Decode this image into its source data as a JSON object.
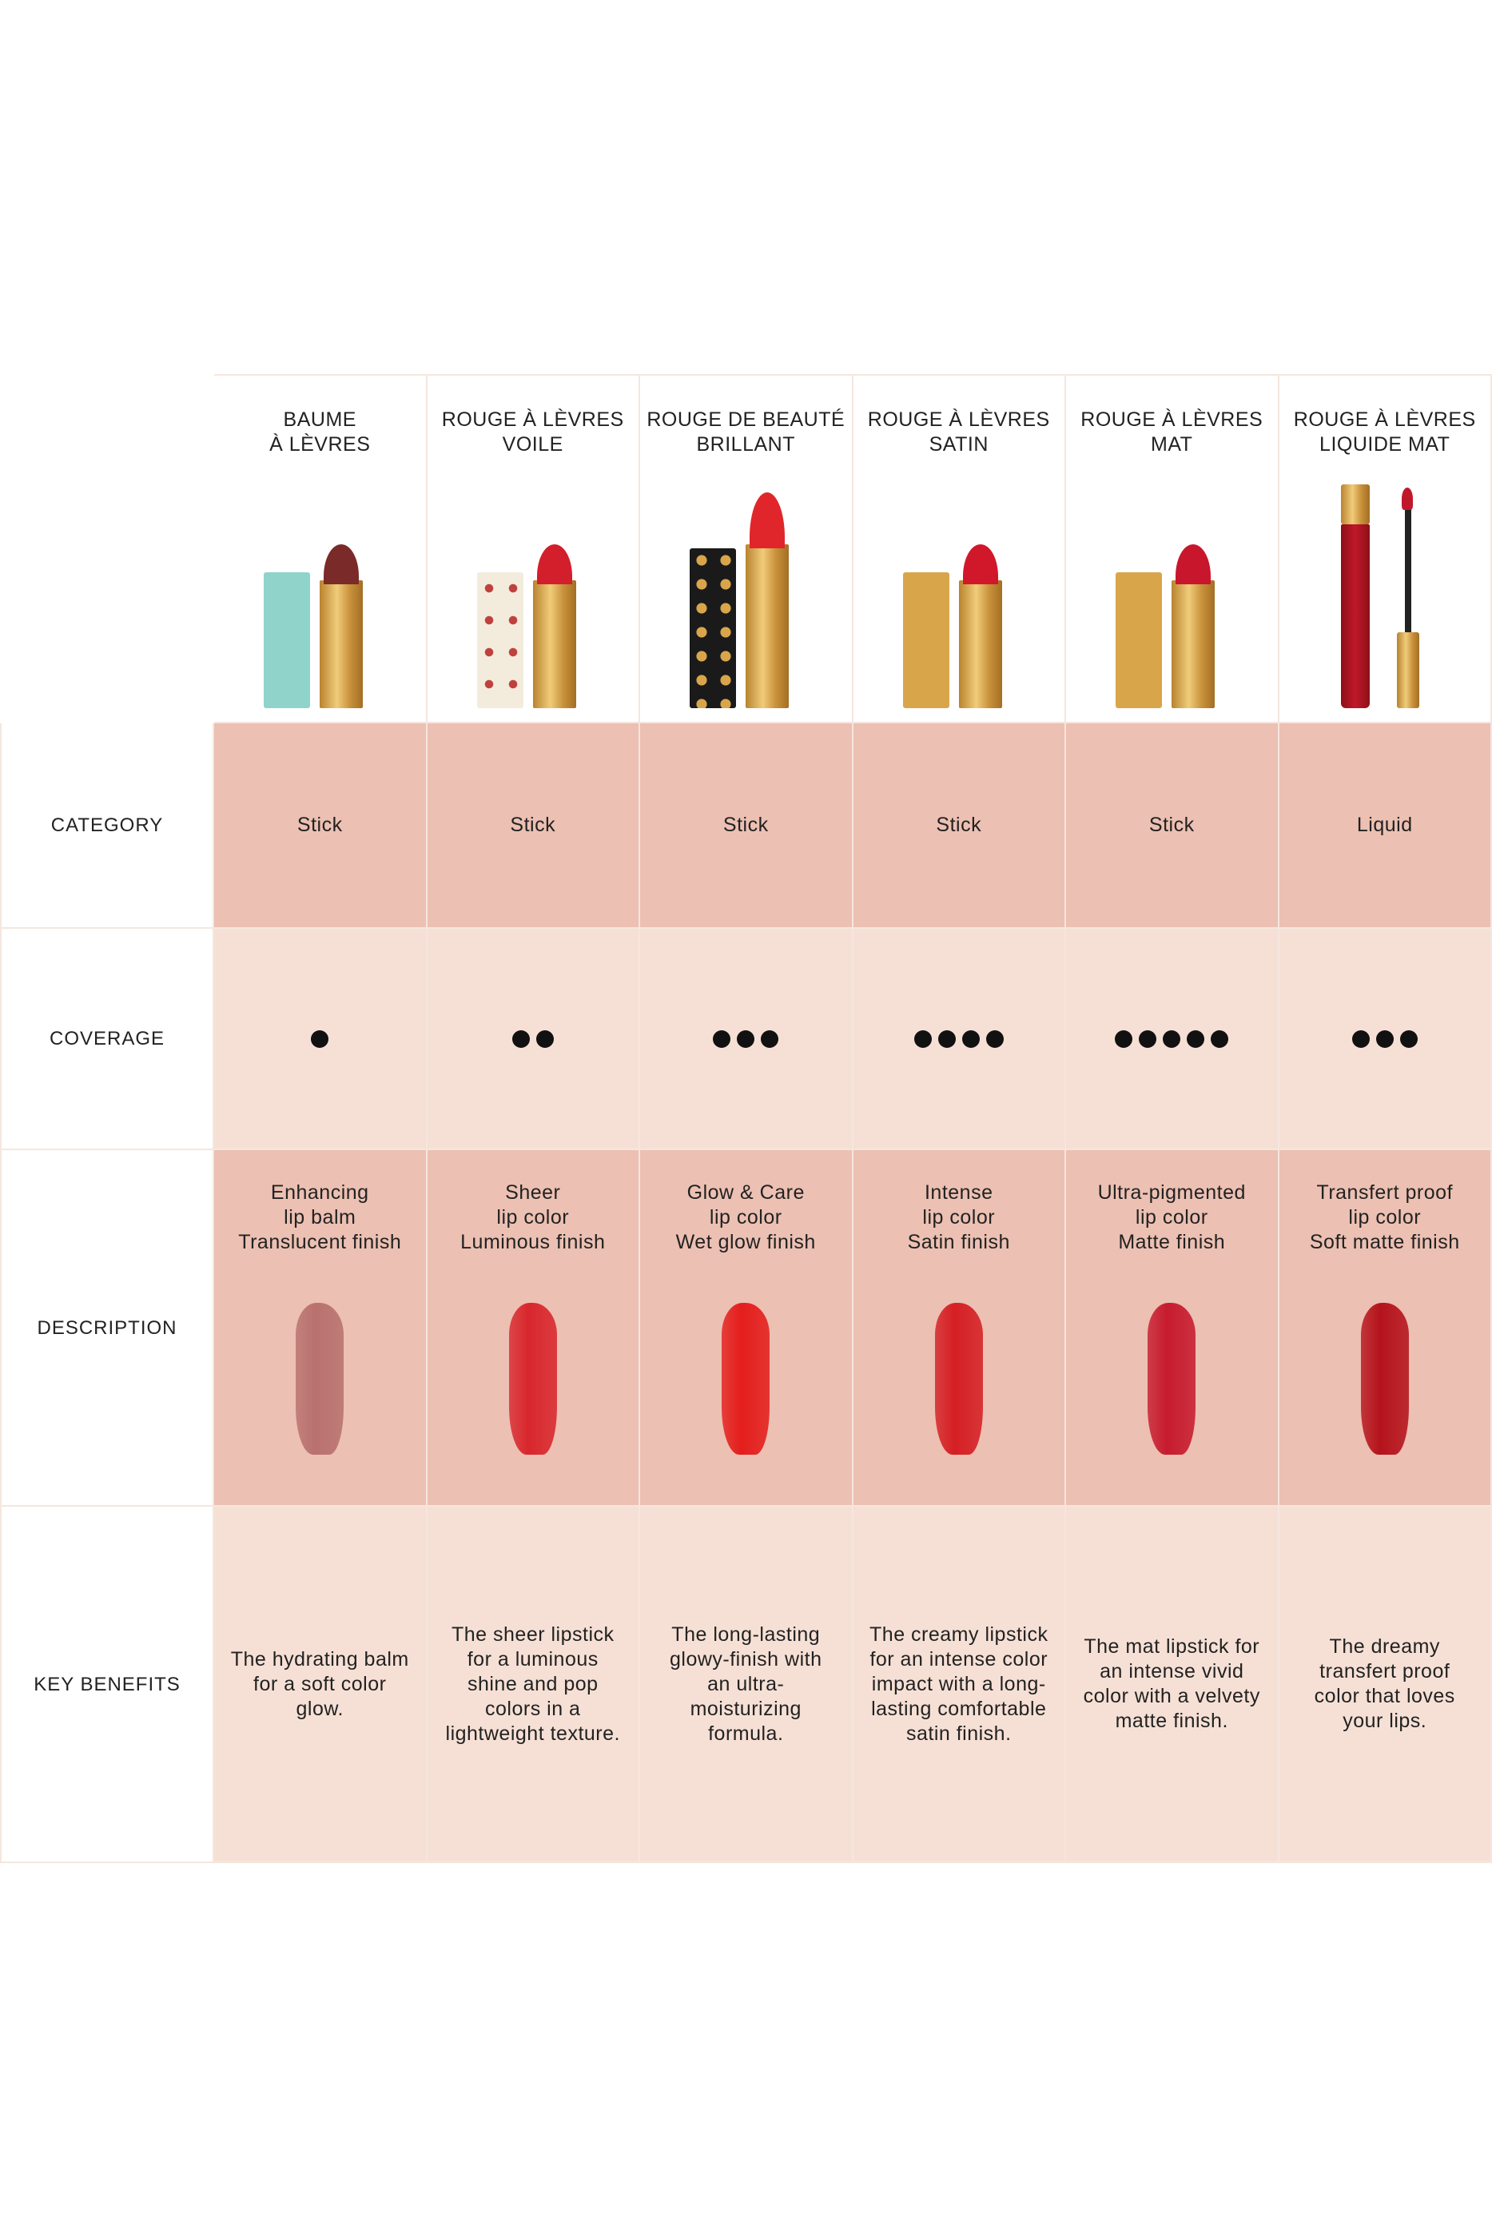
{
  "row_labels": {
    "category": "CATEGORY",
    "coverage": "COVERAGE",
    "description": "DESCRIPTION",
    "key_benefits": "KEY BENEFITS"
  },
  "products": [
    {
      "name1": "BAUME",
      "name2": "À LÈVRES",
      "category": "Stick",
      "coverage": 1,
      "desc1": "Enhancing",
      "desc2": "lip balm",
      "desc3": "Translucent finish",
      "swatch_color": "#b9716e",
      "bullet_color": "#7a2a28",
      "cap_color": "#8fd3cb",
      "benefit": "The hydrating balm for a soft color glow."
    },
    {
      "name1": "ROUGE À LÈVRES",
      "name2": "VOILE",
      "category": "Stick",
      "coverage": 2,
      "desc1": "Sheer",
      "desc2": "lip color",
      "desc3": "Luminous finish",
      "swatch_color": "#d8272d",
      "bullet_color": "#d21f2b",
      "cap_color": "#f3ecdc",
      "benefit": "The sheer lipstick for a luminous shine and pop colors in a lightweight texture."
    },
    {
      "name1": "ROUGE DE BEAUTÉ",
      "name2": "BRILLANT",
      "category": "Stick",
      "coverage": 3,
      "desc1": "Glow & Care",
      "desc2": "lip color",
      "desc3": "Wet glow finish",
      "swatch_color": "#e41e1c",
      "bullet_color": "#e0262a",
      "cap_color": "#1a1a1a",
      "benefit": "The long-lasting glowy-finish with an ultra-moisturizing formula."
    },
    {
      "name1": "ROUGE À LÈVRES",
      "name2": "SATIN",
      "category": "Stick",
      "coverage": 4,
      "desc1": "Intense",
      "desc2": "lip color",
      "desc3": "Satin finish",
      "swatch_color": "#d51f24",
      "bullet_color": "#d0182a",
      "cap_color": "#d9a54a",
      "benefit": "The creamy lipstick for an intense color impact with a long-lasting comfortable satin finish."
    },
    {
      "name1": "ROUGE À LÈVRES",
      "name2": "MAT",
      "category": "Stick",
      "coverage": 5,
      "desc1": "Ultra-pigmented",
      "desc2": "lip color",
      "desc3": "Matte finish",
      "swatch_color": "#c71b2f",
      "bullet_color": "#c8162c",
      "cap_color": "#d9a54a",
      "benefit": "The mat lipstick for an intense vivid color with a velvety matte finish."
    },
    {
      "name1": "ROUGE À LÈVRES",
      "name2": "LIQUIDE MAT",
      "category": "Liquid",
      "coverage": 3,
      "desc1": "Transfert proof",
      "desc2": "lip color",
      "desc3": "Soft matte finish",
      "swatch_color": "#b5131c",
      "bullet_color": "#c0182a",
      "cap_color": "#d9a54a",
      "benefit": "The dreamy transfert proof color that loves your lips."
    }
  ],
  "colors": {
    "dark_row": "#ecc0b2",
    "light_row": "#f6e0d5",
    "gold": "#d9a54a"
  }
}
